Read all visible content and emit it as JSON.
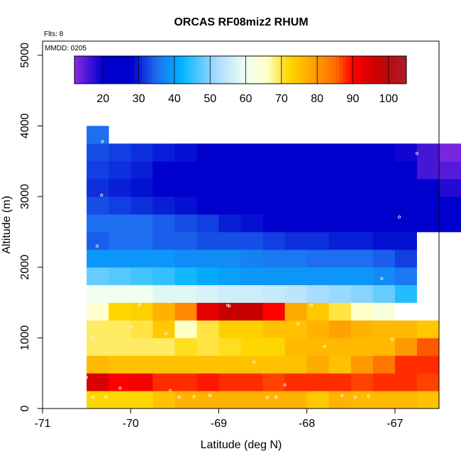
{
  "chart_data": {
    "type": "heatmap",
    "title": "ORCAS RF08miz2 RHUM",
    "xlabel": "Latitude (deg N)",
    "ylabel": "Altitude (m)",
    "xlim": [
      -71,
      -66.5
    ],
    "ylim": [
      0,
      5200
    ],
    "x_ticks": [
      -71,
      -70,
      -69,
      -68,
      -67
    ],
    "y_ticks": [
      0,
      1000,
      2000,
      3000,
      4000,
      5000
    ],
    "annotations": {
      "flights": "Flts: 8",
      "date": "MMDD: 0205"
    },
    "colorbar": {
      "range": [
        12,
        105
      ],
      "ticks": [
        20,
        30,
        40,
        50,
        60,
        70,
        80,
        90,
        100
      ]
    },
    "grid": {
      "x_start": -70.5,
      "x_step": 0.25,
      "y_step": 250,
      "rows": [
        {
          "y0": 0,
          "values": [
            72,
            72,
            72,
            75,
            77,
            77,
            77,
            77,
            77,
            77,
            74,
            77,
            76,
            76,
            76,
            75,
            null,
            null
          ]
        },
        {
          "y0": 250,
          "values": [
            95,
            90,
            91,
            88,
            88,
            89,
            88,
            88,
            87,
            88,
            88,
            88,
            87,
            88,
            88,
            87,
            null,
            null
          ]
        },
        {
          "y0": 500,
          "values": [
            76,
            75,
            75,
            75,
            75,
            75,
            75,
            75,
            75,
            75,
            78,
            75,
            80,
            84,
            88,
            88,
            null,
            null
          ]
        },
        {
          "y0": 750,
          "values": [
            69,
            69,
            69,
            69,
            71,
            70,
            71,
            72,
            72,
            76,
            76,
            76,
            76,
            76,
            80,
            86,
            null,
            null
          ]
        },
        {
          "y0": 1000,
          "values": [
            69,
            69,
            70,
            74,
            66,
            70,
            73,
            73,
            75,
            75,
            77,
            79,
            77,
            76,
            76,
            74,
            null,
            null
          ]
        },
        {
          "y0": 1250,
          "values": [
            65,
            72,
            73,
            77,
            82,
            93,
            97,
            97,
            90,
            78,
            74,
            70,
            66,
            63,
            0,
            0,
            null,
            null
          ]
        },
        {
          "y0": 1500,
          "values": [
            60,
            60,
            60,
            58,
            58,
            57,
            56,
            56,
            55,
            54,
            52,
            51,
            50,
            48,
            44,
            0,
            null,
            null
          ]
        },
        {
          "y0": 1750,
          "values": [
            48,
            47,
            46,
            45,
            43,
            41,
            40,
            39,
            39,
            39,
            39,
            39,
            39,
            38,
            36,
            0,
            null,
            null
          ]
        },
        {
          "y0": 2000,
          "values": [
            39,
            39,
            39,
            39,
            38,
            38,
            38,
            37,
            36,
            36,
            35,
            35,
            35,
            34,
            32,
            0,
            null,
            null
          ]
        },
        {
          "y0": 2250,
          "values": [
            34,
            35,
            35,
            34,
            34,
            33,
            33,
            33,
            32,
            31,
            31,
            30,
            30,
            29,
            29,
            0,
            null,
            null
          ]
        },
        {
          "y0": 2500,
          "values": [
            35,
            35,
            35,
            34,
            33,
            32,
            30,
            29,
            28,
            27,
            26,
            26,
            26,
            25,
            25,
            25,
            25,
            null
          ]
        },
        {
          "y0": 2750,
          "values": [
            33,
            32,
            31,
            30,
            29,
            28,
            27,
            26,
            26,
            26,
            26,
            26,
            25,
            25,
            24,
            24,
            25,
            null
          ]
        },
        {
          "y0": 3000,
          "values": [
            31,
            30,
            29,
            28,
            27,
            26,
            25,
            25,
            24,
            24,
            24,
            24,
            24,
            23,
            23,
            22,
            18,
            null
          ]
        },
        {
          "y0": 3250,
          "values": [
            32,
            31,
            30,
            28,
            27,
            26,
            25,
            24,
            24,
            23,
            22,
            22,
            22,
            21,
            20,
            16,
            15,
            null
          ]
        },
        {
          "y0": 3500,
          "values": [
            33,
            32,
            31,
            30,
            29,
            27,
            26,
            25,
            24,
            23,
            22,
            22,
            22,
            21,
            19,
            16,
            13,
            null
          ]
        },
        {
          "y0": 3750,
          "values": [
            35,
            null,
            null,
            null,
            null,
            null,
            null,
            null,
            null,
            null,
            null,
            null,
            null,
            null,
            null,
            null,
            null,
            null
          ]
        }
      ]
    },
    "points": [
      {
        "lat": -70.43,
        "alt": 160
      },
      {
        "lat": -70.28,
        "alt": 165
      },
      {
        "lat": -70.12,
        "alt": 290
      },
      {
        "lat": -70.0,
        "alt": 1150
      },
      {
        "lat": -69.9,
        "alt": 1470
      },
      {
        "lat": -69.55,
        "alt": 255
      },
      {
        "lat": -69.45,
        "alt": 160
      },
      {
        "lat": -69.28,
        "alt": 170
      },
      {
        "lat": -69.1,
        "alt": 185
      },
      {
        "lat": -68.9,
        "alt": 1460
      },
      {
        "lat": -68.88,
        "alt": 1450
      },
      {
        "lat": -68.6,
        "alt": 660
      },
      {
        "lat": -68.45,
        "alt": 155
      },
      {
        "lat": -68.35,
        "alt": 160
      },
      {
        "lat": -68.25,
        "alt": 335
      },
      {
        "lat": -68.1,
        "alt": 1200
      },
      {
        "lat": -67.95,
        "alt": 1460
      },
      {
        "lat": -67.8,
        "alt": 880
      },
      {
        "lat": -67.6,
        "alt": 185
      },
      {
        "lat": -67.45,
        "alt": 160
      },
      {
        "lat": -67.3,
        "alt": 175
      },
      {
        "lat": -67.15,
        "alt": 1840
      },
      {
        "lat": -67.03,
        "alt": 980
      },
      {
        "lat": -66.95,
        "alt": 2710
      },
      {
        "lat": -66.75,
        "alt": 3610
      },
      {
        "lat": -70.32,
        "alt": 3780
      },
      {
        "lat": -70.33,
        "alt": 3020
      },
      {
        "lat": -70.38,
        "alt": 2300
      },
      {
        "lat": -70.5,
        "alt": 440
      },
      {
        "lat": -70.43,
        "alt": 1000
      },
      {
        "lat": -69.6,
        "alt": 1060
      }
    ]
  }
}
